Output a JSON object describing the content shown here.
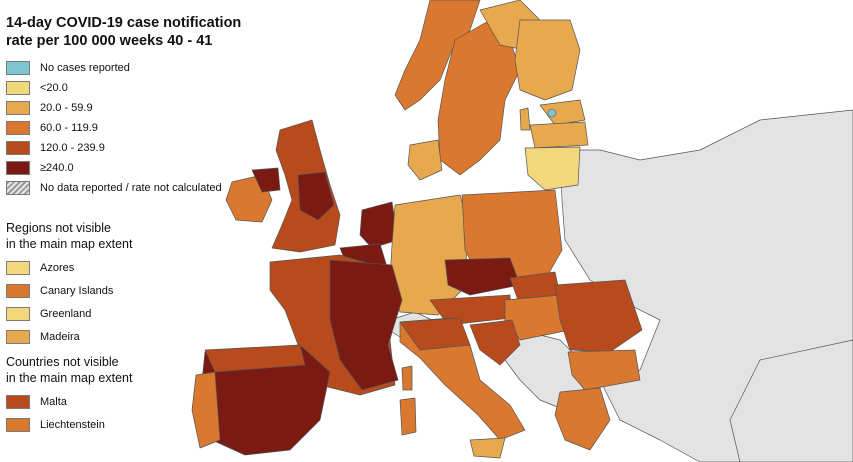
{
  "title": {
    "line1": "14-day COVID-19 case notification",
    "line2": "rate per 100 000 weeks 40 - 41"
  },
  "legend": [
    {
      "label": "No cases reported",
      "color": "#7cc7cf",
      "pattern": "solid"
    },
    {
      "label": "<20.0",
      "color": "#f2d77c",
      "pattern": "solid"
    },
    {
      "label": "20.0 - 59.9",
      "color": "#e8a94e",
      "pattern": "solid"
    },
    {
      "label": "60.0 - 119.9",
      "color": "#d9782e",
      "pattern": "solid"
    },
    {
      "label": "120.0 - 239.9",
      "color": "#b84a1c",
      "pattern": "solid"
    },
    {
      "label": "≥240.0",
      "color": "#7a1a12",
      "pattern": "solid"
    },
    {
      "label": "No data reported / rate not calculated",
      "color": "#bdbdbd",
      "pattern": "hatched"
    }
  ],
  "regions_not_visible": {
    "heading_line1": "Regions not visible",
    "heading_line2": "in the main map extent",
    "items": [
      {
        "name": "Azores",
        "color": "#f2d77c"
      },
      {
        "name": "Canary Islands",
        "color": "#d9782e"
      },
      {
        "name": "Greenland",
        "color": "#f2d77c"
      },
      {
        "name": "Madeira",
        "color": "#e8a94e"
      }
    ]
  },
  "countries_not_visible": {
    "heading_line1": "Countries not visible",
    "heading_line2": "in the main map extent",
    "items": [
      {
        "name": "Malta",
        "color": "#b84a1c"
      },
      {
        "name": "Liechtenstein",
        "color": "#d9782e"
      }
    ]
  },
  "map_colors": {
    "sea": "#ffffff",
    "non_eu_land": "#e3e3e3",
    "border": "#555555"
  }
}
